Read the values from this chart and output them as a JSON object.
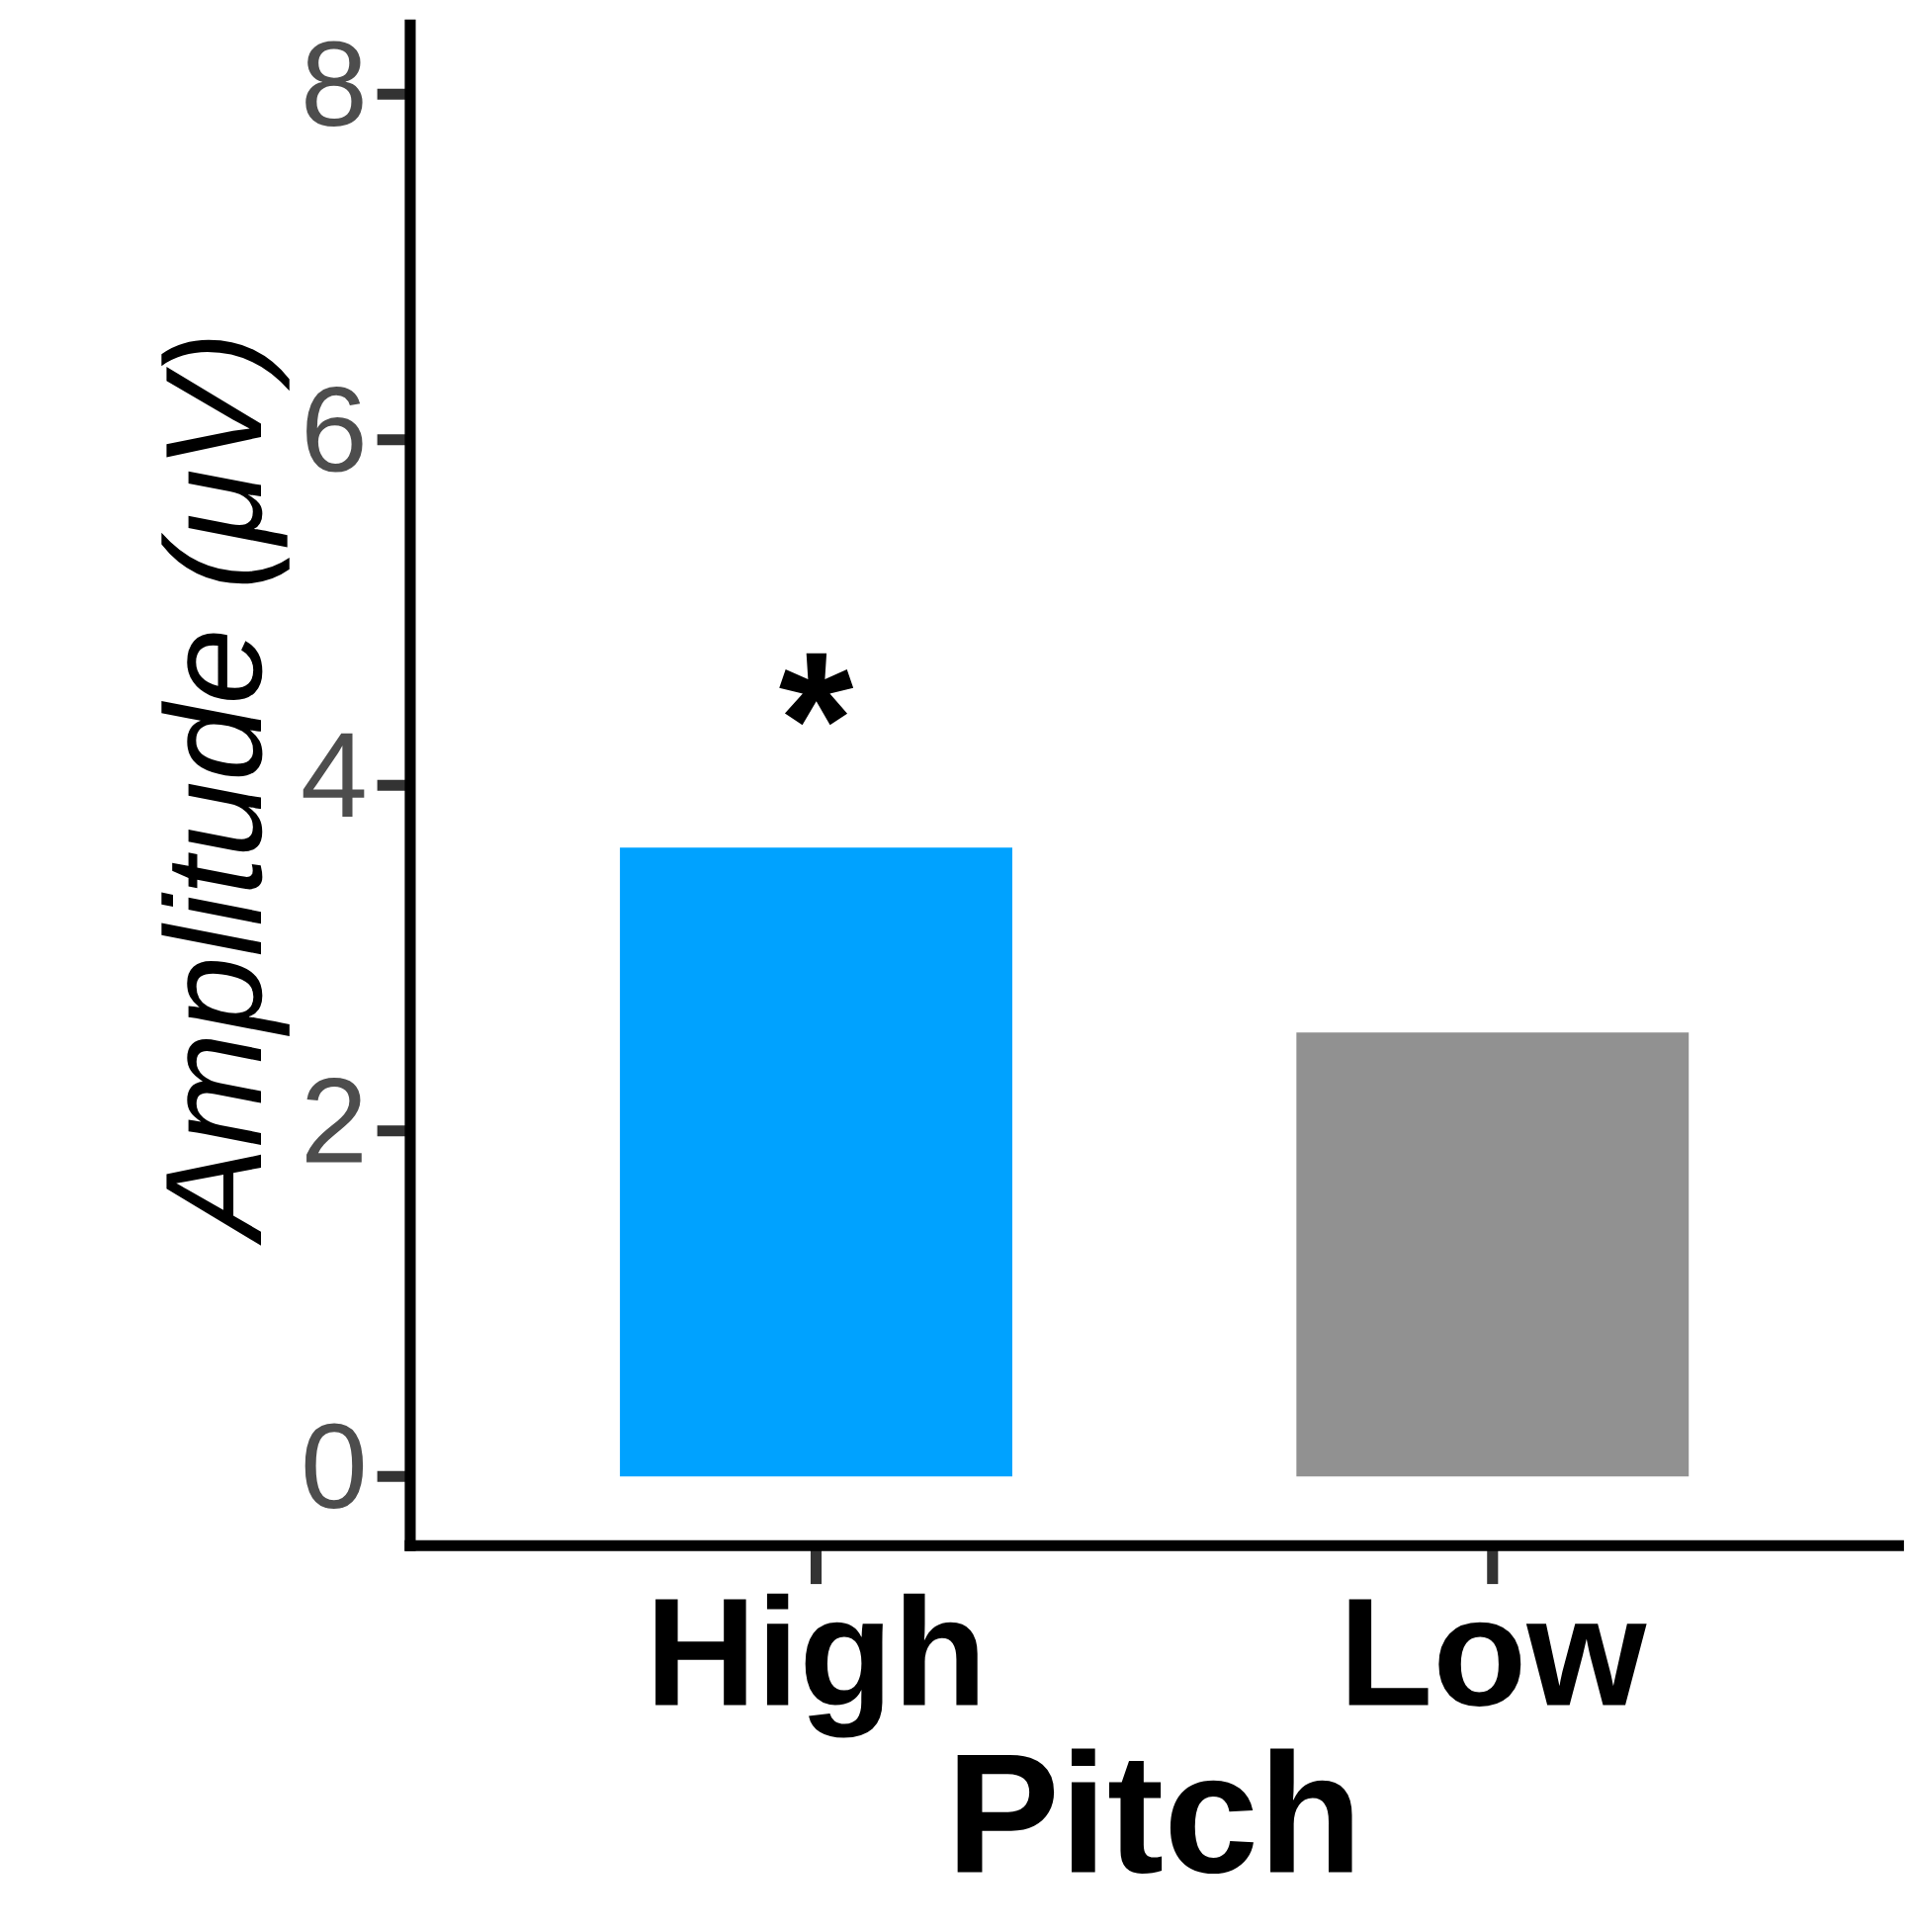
{
  "chart_data": {
    "type": "bar",
    "xlabel": "Pitch",
    "ylabel": "Amplitude (μV)",
    "categories": [
      "High",
      "Low"
    ],
    "values": [
      3.64,
      2.57
    ],
    "colors": [
      "#00a2ff",
      "#919191"
    ],
    "ylim": [
      -0.4,
      8.4
    ],
    "yticks": [
      0,
      2,
      4,
      6,
      8
    ],
    "grid": false,
    "legend": false,
    "annotations": [
      {
        "text": "*",
        "x": "High",
        "y": 3.64
      }
    ]
  }
}
